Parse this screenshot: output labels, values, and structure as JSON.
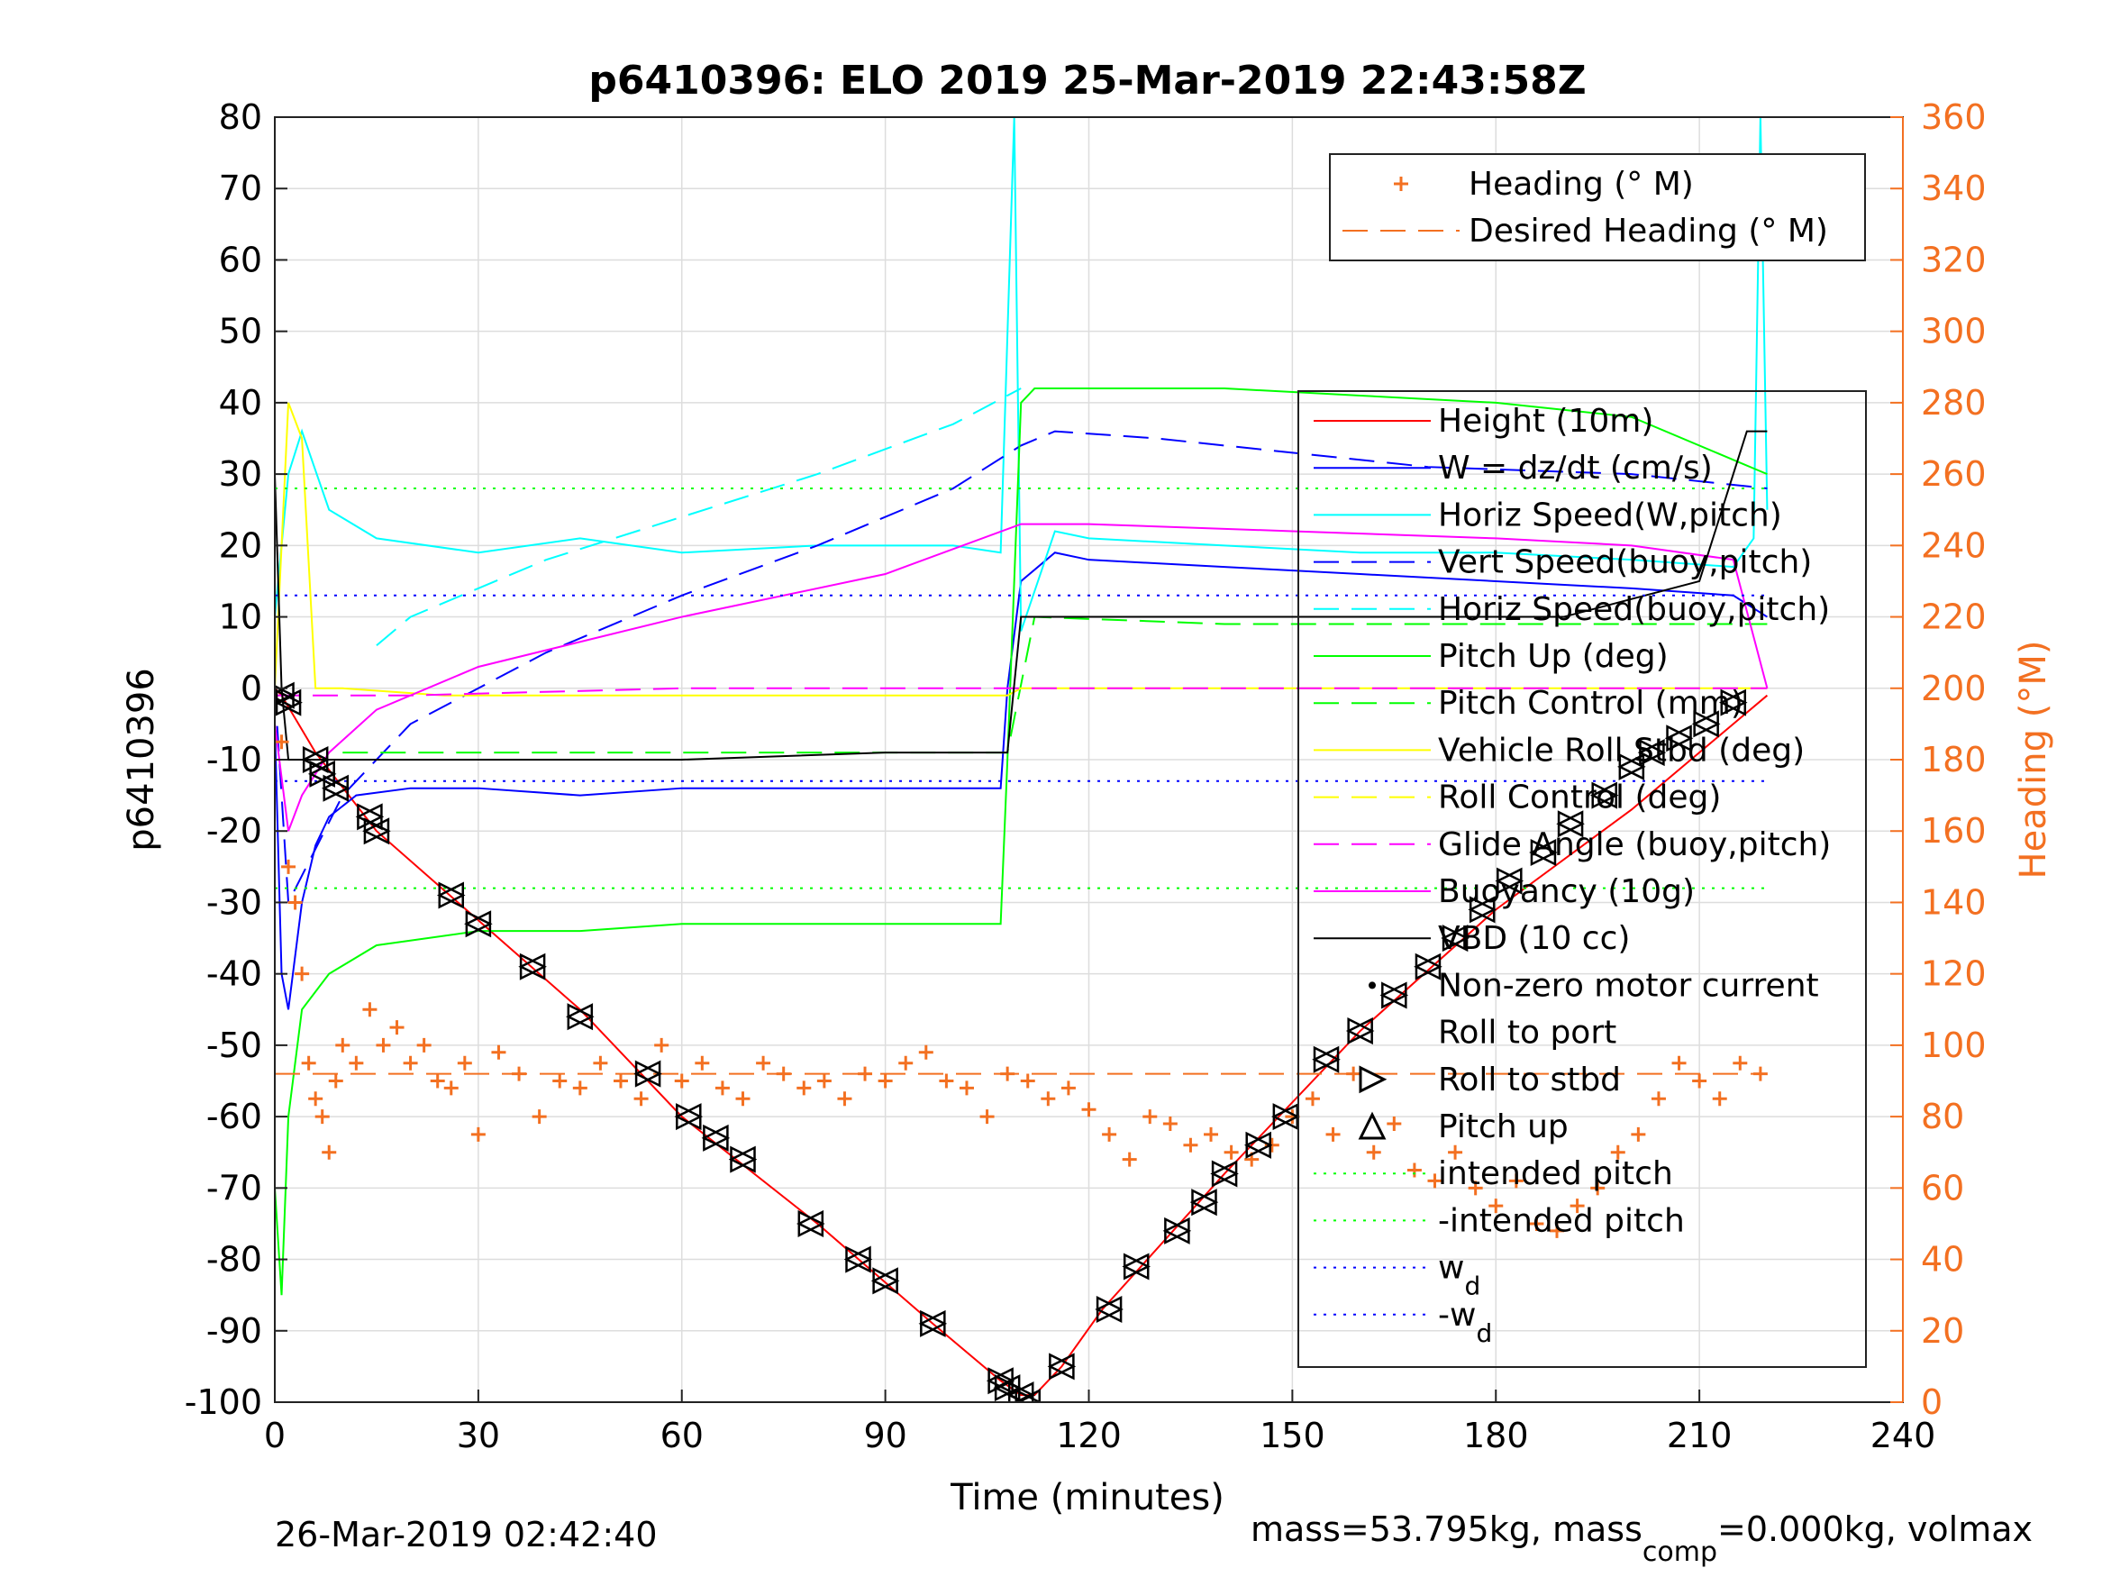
{
  "chart_data": {
    "type": "line",
    "title": "p6410396: ELO 2019 25-Mar-2019 22:43:58Z",
    "xlabel": "Time (minutes)",
    "ylabel": "p6410396",
    "ylabel_right": "Heading (°M)",
    "xlim": [
      0,
      240
    ],
    "ylim": [
      -100,
      80
    ],
    "ylim_right": [
      0,
      360
    ],
    "x_ticks": [
      "0",
      "30",
      "60",
      "90",
      "120",
      "150",
      "180",
      "210",
      "240"
    ],
    "y_ticks": [
      "-100",
      "-90",
      "-80",
      "-70",
      "-60",
      "-50",
      "-40",
      "-30",
      "-20",
      "-10",
      "0",
      "10",
      "20",
      "30",
      "40",
      "50",
      "60",
      "70",
      "80"
    ],
    "y_ticks_right": [
      "0",
      "20",
      "40",
      "60",
      "80",
      "100",
      "120",
      "140",
      "160",
      "180",
      "200",
      "220",
      "240",
      "260",
      "280",
      "300",
      "320",
      "340",
      "360"
    ],
    "grid": true,
    "footer_left": "26-Mar-2019 02:42:40",
    "footer_right": {
      "prefix": "mass=53.795kg, mass",
      "sub": "comp",
      "suffix": "=0.000kg, volmax"
    },
    "legend_right": {
      "placement": "top-right",
      "items": [
        {
          "label": "Heading (° M)",
          "color": "#F37021",
          "style": "plus"
        },
        {
          "label": "Desired Heading (° M)",
          "color": "#F37021",
          "style": "dashed"
        }
      ]
    },
    "legend_main": {
      "placement": "right",
      "items": [
        {
          "label": "Height (10m)",
          "color": "#ff0000",
          "style": "solid"
        },
        {
          "label": "W = dz/dt (cm/s)",
          "color": "#0000ff",
          "style": "solid"
        },
        {
          "label": "Horiz Speed(W,pitch)",
          "color": "#00ffff",
          "style": "solid"
        },
        {
          "label": "Vert Speed(buoy,pitch)",
          "color": "#0000ff",
          "style": "dashed"
        },
        {
          "label": "Horiz Speed(buoy,pitch)",
          "color": "#00ffff",
          "style": "dashed"
        },
        {
          "label": "Pitch Up (deg)",
          "color": "#00ff00",
          "style": "solid"
        },
        {
          "label": "Pitch Control (mm)",
          "color": "#00ff00",
          "style": "dashed"
        },
        {
          "label": "Vehicle Roll Stbd (deg)",
          "color": "#ffff00",
          "style": "solid"
        },
        {
          "label": "Roll Control (deg)",
          "color": "#ffff00",
          "style": "dashed"
        },
        {
          "label": "Glide Angle (buoy,pitch)",
          "color": "#ff00ff",
          "style": "dashed"
        },
        {
          "label": "Buoyancy (10g)",
          "color": "#ff00ff",
          "style": "solid"
        },
        {
          "label": "VBD (10 cc)",
          "color": "#000000",
          "style": "solid"
        },
        {
          "label": "Non-zero motor current",
          "color": "#000000",
          "style": "dot"
        },
        {
          "label": "Roll to port",
          "color": "#000000",
          "style": "tri-left"
        },
        {
          "label": "Roll to stbd",
          "color": "#000000",
          "style": "tri-right"
        },
        {
          "label": "Pitch up",
          "color": "#000000",
          "style": "tri-up"
        },
        {
          "label": "intended pitch",
          "color": "#00ff00",
          "style": "dotted"
        },
        {
          "label": "-intended pitch",
          "color": "#00ff00",
          "style": "dotted"
        },
        {
          "label": "w",
          "sub": "d",
          "color": "#0000ff",
          "style": "dotted"
        },
        {
          "label": "-w",
          "sub": "d",
          "color": "#0000ff",
          "style": "dotted"
        }
      ]
    },
    "series": [
      {
        "name": "Height (10m)",
        "color": "#ff0000",
        "x": [
          0,
          1,
          6,
          15,
          27,
          45,
          60,
          80,
          97,
          107,
          110,
          112,
          116,
          122,
          140,
          160,
          180,
          200,
          215,
          220
        ],
        "y": [
          0,
          -1,
          -9,
          -20,
          -30,
          -45,
          -60,
          -75,
          -89,
          -97,
          -99,
          -99,
          -95,
          -87,
          -68,
          -48,
          -31,
          -17,
          -5,
          -1
        ]
      },
      {
        "name": "W = dz/dt (cm/s)",
        "color": "#0000ff",
        "x": [
          0,
          1,
          2,
          4,
          6,
          8,
          12,
          20,
          30,
          45,
          60,
          80,
          100,
          107,
          108,
          110,
          115,
          120,
          140,
          160,
          180,
          200,
          215,
          220
        ],
        "y": [
          -5,
          -40,
          -45,
          -30,
          -22,
          -18,
          -15,
          -14,
          -14,
          -15,
          -14,
          -14,
          -14,
          -14,
          0,
          15,
          19,
          18,
          17,
          16,
          15,
          14,
          13,
          10
        ]
      },
      {
        "name": "Horiz Speed(W,pitch)",
        "color": "#00ffff",
        "x": [
          0,
          2,
          4,
          8,
          15,
          30,
          45,
          60,
          80,
          100,
          107,
          109,
          110,
          115,
          120,
          140,
          160,
          180,
          200,
          215,
          218,
          219,
          220
        ],
        "y": [
          10,
          30,
          36,
          25,
          21,
          19,
          21,
          19,
          20,
          20,
          19,
          80,
          8,
          22,
          21,
          20,
          19,
          19,
          18,
          17,
          21,
          80,
          25
        ]
      },
      {
        "name": "Vert Speed(buoy,pitch)",
        "color": "#0000ff",
        "x": [
          0,
          2,
          10,
          20,
          40,
          60,
          80,
          100,
          110,
          115,
          130,
          150,
          170,
          200,
          220
        ],
        "y": [
          0,
          -30,
          -15,
          -5,
          5,
          13,
          20,
          28,
          34,
          36,
          35,
          33,
          31,
          30,
          28
        ]
      },
      {
        "name": "Horiz Speed(buoy,pitch)",
        "color": "#00ffff",
        "x": [
          15,
          20,
          40,
          60,
          80,
          100,
          110
        ],
        "y": [
          6,
          10,
          18,
          24,
          30,
          37,
          42
        ]
      },
      {
        "name": "Pitch Up (deg)",
        "color": "#00ff00",
        "x": [
          0,
          1,
          2,
          4,
          8,
          15,
          30,
          45,
          60,
          80,
          100,
          107,
          108,
          110,
          112,
          120,
          140,
          160,
          180,
          200,
          215,
          220
        ],
        "y": [
          -70,
          -85,
          -60,
          -45,
          -40,
          -36,
          -34,
          -34,
          -33,
          -33,
          -33,
          -33,
          -10,
          40,
          42,
          42,
          42,
          41,
          40,
          38,
          32,
          30
        ]
      },
      {
        "name": "Pitch Control (mm)",
        "color": "#00ff00",
        "x": [
          10,
          40,
          80,
          108,
          112,
          140,
          180,
          220
        ],
        "y": [
          -9,
          -9,
          -9,
          -9,
          10,
          9,
          9,
          9
        ]
      },
      {
        "name": "Vehicle Roll Stbd (deg)",
        "color": "#ffff00",
        "x": [
          0,
          2,
          4,
          6,
          10,
          25,
          40,
          60,
          80,
          100,
          108,
          110,
          130,
          150,
          170,
          190,
          210,
          220
        ],
        "y": [
          0,
          40,
          35,
          0,
          0,
          -1,
          -1,
          -1,
          -1,
          -1,
          -1,
          0,
          0,
          0,
          0,
          0,
          0,
          0
        ]
      },
      {
        "name": "Glide Angle (buoy,pitch)",
        "color": "#ff00ff",
        "x": [
          0,
          20,
          60,
          110,
          160,
          220
        ],
        "y": [
          -1,
          -1,
          0,
          0,
          0,
          0
        ]
      },
      {
        "name": "Buoyancy (10g)",
        "color": "#ff00ff",
        "x": [
          0,
          2,
          4,
          8,
          15,
          30,
          60,
          90,
          110,
          120,
          150,
          180,
          200,
          215,
          220
        ],
        "y": [
          -5,
          -20,
          -15,
          -9,
          -3,
          3,
          10,
          16,
          23,
          23,
          22,
          21,
          20,
          18,
          0
        ]
      },
      {
        "name": "VBD (10 cc)",
        "color": "#000000",
        "x": [
          0,
          1,
          2,
          10,
          30,
          60,
          90,
          108,
          110,
          130,
          160,
          190,
          210,
          215,
          217,
          220
        ],
        "y": [
          30,
          0,
          -10,
          -10,
          -10,
          -10,
          -9,
          -9,
          10,
          10,
          10,
          10,
          15,
          30,
          36,
          36
        ]
      },
      {
        "name": "Desired Heading (° M)",
        "color": "#F37021",
        "axis": "right",
        "x": [
          0,
          220
        ],
        "y": [
          92,
          92
        ]
      },
      {
        "name": "intended pitch",
        "color": "#00ff00",
        "x": [
          0,
          220
        ],
        "y": [
          28,
          28
        ]
      },
      {
        "name": "-intended pitch",
        "color": "#00ff00",
        "x": [
          0,
          220
        ],
        "y": [
          -28,
          -28
        ]
      },
      {
        "name": "w_d",
        "color": "#0000ff",
        "x": [
          0,
          220
        ],
        "y": [
          13,
          13
        ]
      },
      {
        "name": "-w_d",
        "color": "#0000ff",
        "x": [
          0,
          220
        ],
        "y": [
          -13,
          -13
        ]
      }
    ],
    "heading_points": {
      "axis": "right",
      "x": [
        1,
        2,
        3,
        4,
        5,
        6,
        7,
        8,
        9,
        10,
        12,
        14,
        16,
        18,
        20,
        22,
        24,
        26,
        28,
        30,
        33,
        36,
        39,
        42,
        45,
        48,
        51,
        54,
        57,
        60,
        63,
        66,
        69,
        72,
        75,
        78,
        81,
        84,
        87,
        90,
        93,
        96,
        99,
        102,
        105,
        108,
        111,
        114,
        117,
        120,
        123,
        126,
        129,
        132,
        135,
        138,
        141,
        144,
        147,
        150,
        153,
        156,
        159,
        162,
        165,
        168,
        171,
        174,
        177,
        180,
        183,
        186,
        189,
        192,
        195,
        198,
        201,
        204,
        207,
        210,
        213,
        216,
        219
      ],
      "y": [
        185,
        150,
        140,
        120,
        95,
        85,
        80,
        70,
        90,
        100,
        95,
        110,
        100,
        105,
        95,
        100,
        90,
        88,
        95,
        75,
        98,
        92,
        80,
        90,
        88,
        95,
        90,
        85,
        100,
        90,
        95,
        88,
        85,
        95,
        92,
        88,
        90,
        85,
        92,
        90,
        95,
        98,
        90,
        88,
        80,
        92,
        90,
        85,
        88,
        82,
        75,
        68,
        80,
        78,
        72,
        75,
        70,
        68,
        72,
        80,
        85,
        75,
        92,
        70,
        78,
        65,
        62,
        70,
        60,
        55,
        62,
        50,
        48,
        55,
        60,
        70,
        75,
        85,
        95,
        90,
        85,
        95,
        92
      ]
    },
    "markers": {
      "x": [
        1,
        2,
        6,
        7,
        9,
        14,
        15,
        26,
        30,
        38,
        45,
        55,
        61,
        65,
        69,
        79,
        86,
        90,
        97,
        107,
        108,
        110,
        111,
        116,
        123,
        127,
        133,
        137,
        140,
        145,
        149,
        155,
        160,
        165,
        170,
        174,
        178,
        182,
        187,
        191,
        196,
        200,
        203,
        207,
        211,
        215
      ],
      "y": [
        -1,
        -2,
        -10,
        -12,
        -14,
        -18,
        -20,
        -29,
        -33,
        -39,
        -46,
        -54,
        -60,
        -63,
        -66,
        -75,
        -80,
        -83,
        -89,
        -97,
        -98,
        -99,
        -100,
        -95,
        -87,
        -81,
        -76,
        -72,
        -68,
        -64,
        -60,
        -52,
        -48,
        -43,
        -39,
        -35,
        -31,
        -27,
        -23,
        -19,
        -15,
        -11,
        -9,
        -7,
        -5,
        -2
      ]
    }
  }
}
